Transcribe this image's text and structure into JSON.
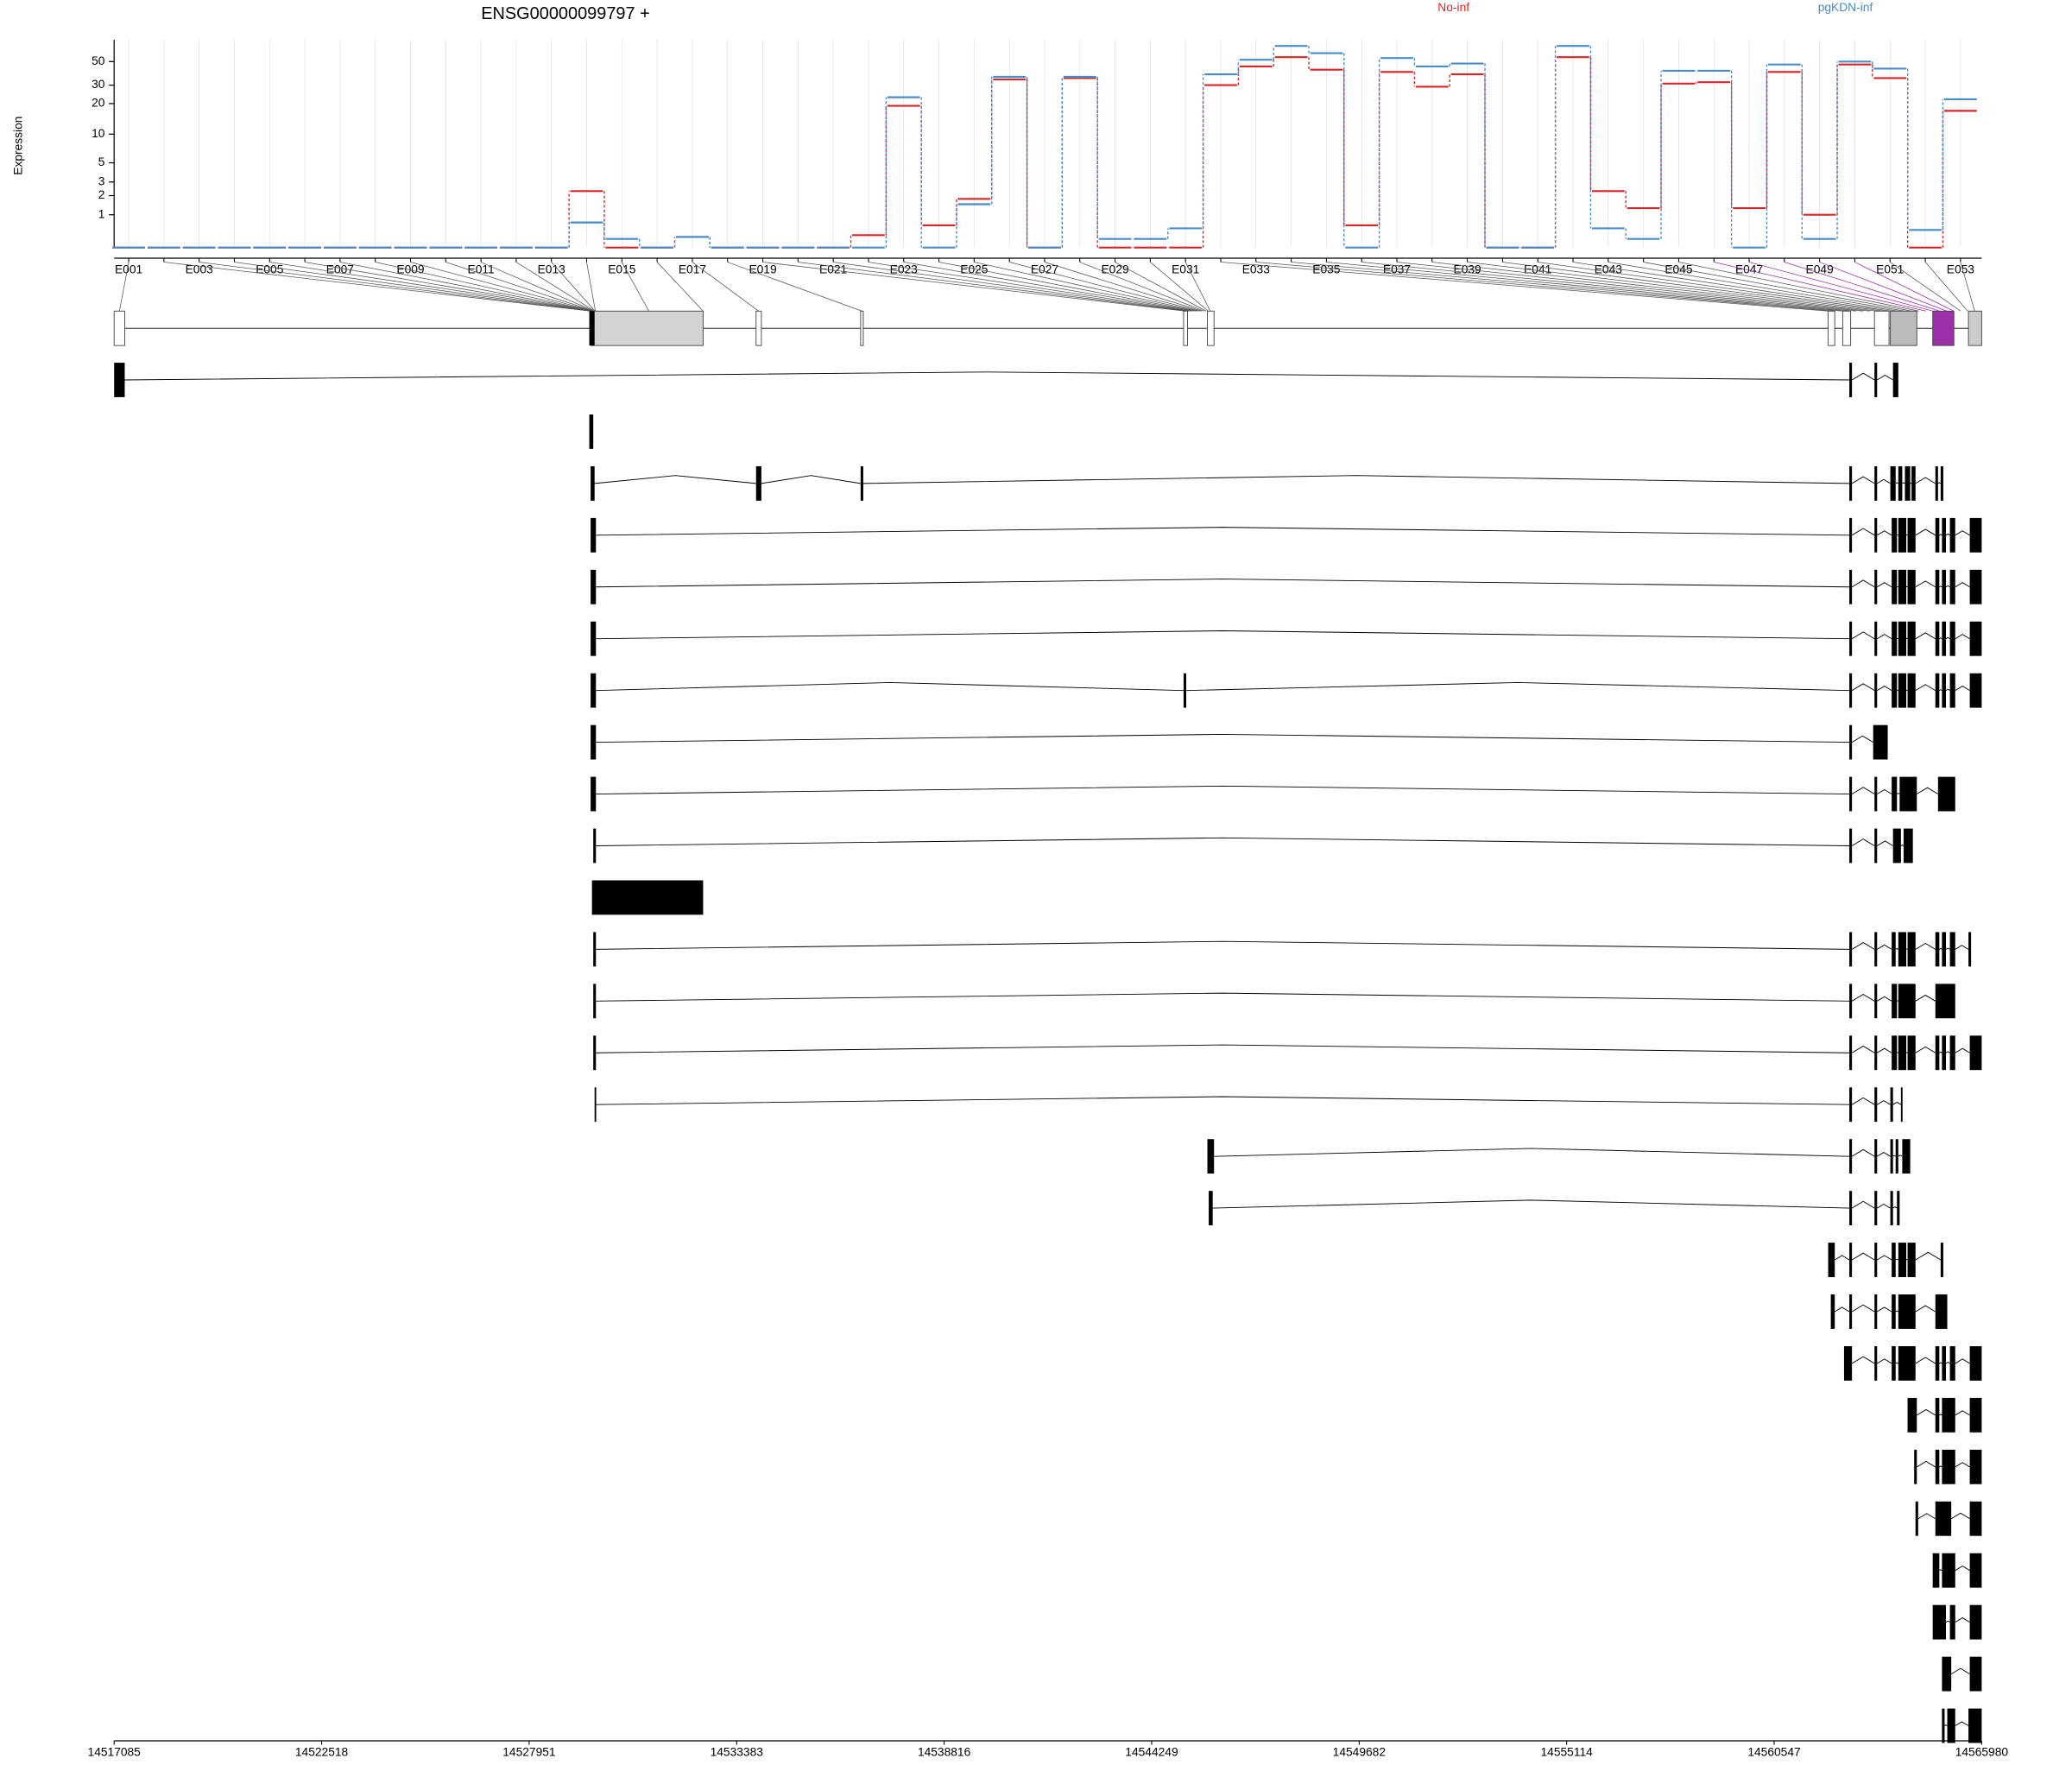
{
  "chart_data": {
    "type": "line",
    "title": "ENSG00000099797 +",
    "y_label": "Expression",
    "yscale": "log1p",
    "ylim": [
      0,
      80
    ],
    "yticks": [
      1,
      2,
      3,
      5,
      10,
      20,
      30,
      50
    ],
    "categories": [
      "E001",
      null,
      "E003",
      null,
      "E005",
      null,
      "E007",
      null,
      "E009",
      null,
      "E011",
      null,
      "E013",
      null,
      "E015",
      null,
      "E017",
      null,
      "E019",
      null,
      "E021",
      null,
      "E023",
      null,
      "E025",
      null,
      "E027",
      null,
      "E029",
      null,
      "E031",
      null,
      "E033",
      null,
      "E035",
      null,
      "E037",
      null,
      "E039",
      null,
      "E041",
      null,
      "E043",
      null,
      "E045",
      null,
      "E047",
      null,
      "E049",
      null,
      "E051",
      null,
      "E053"
    ],
    "series": [
      {
        "name": "No-inf",
        "color": "#d62728",
        "values": [
          0,
          0,
          0,
          0,
          0,
          0,
          0,
          0,
          0,
          0,
          0,
          0,
          0,
          2.3,
          0,
          0,
          0.25,
          0,
          0,
          0,
          0,
          0.3,
          19,
          0.6,
          1.8,
          34,
          0,
          35,
          0,
          0,
          0,
          30,
          45,
          55,
          42,
          0.6,
          40,
          29,
          38,
          0,
          0,
          55,
          2.3,
          1.3,
          31,
          32,
          1.3,
          40,
          1,
          47,
          35,
          0,
          17
        ]
      },
      {
        "name": "pgKDN-inf",
        "color": "#4a8cc7",
        "values": [
          0,
          0,
          0,
          0,
          0,
          0,
          0,
          0,
          0,
          0,
          0,
          0,
          0,
          0.7,
          0.2,
          0,
          0.25,
          0,
          0,
          0,
          0,
          0,
          23,
          0,
          1.5,
          36,
          0,
          36,
          0.2,
          0.2,
          0.5,
          38,
          52,
          70,
          60,
          0,
          54,
          45,
          48,
          0,
          0,
          70,
          0.5,
          0.2,
          41,
          41,
          0,
          47,
          0.2,
          50,
          43,
          0.45,
          22
        ]
      }
    ],
    "genome_axis": {
      "xlim": [
        14517085,
        14565980
      ],
      "xticks": [
        14517085,
        14522518,
        14527951,
        14533383,
        14538816,
        14544249,
        14549682,
        14555114,
        14560547,
        14565980
      ]
    }
  }
}
